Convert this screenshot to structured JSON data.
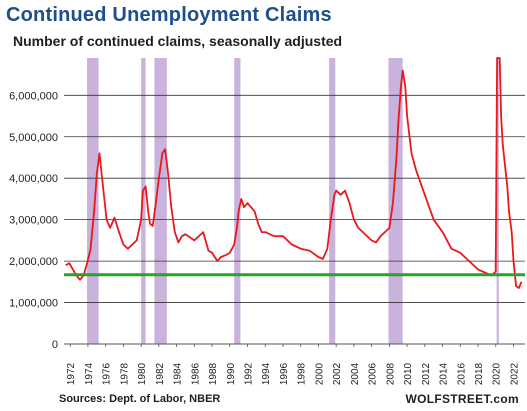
{
  "chart_data": {
    "type": "line",
    "title": "Continued  Unemployment Claims",
    "subtitle": "Number of continued claims, seasonally adjusted",
    "source": "Sources: Dept. of Labor, NBER",
    "brand": "WOLFSTREET.com",
    "ylim": [
      0,
      6900000
    ],
    "xlim": [
      1971.3,
      2023.3
    ],
    "y_ticks": [
      0,
      1000000,
      2000000,
      3000000,
      4000000,
      5000000,
      6000000
    ],
    "y_tick_labels": [
      "0",
      "1,000,000",
      "2,000,000",
      "3,000,000",
      "4,000,000",
      "5,000,000",
      "6,000,000"
    ],
    "x_ticks": [
      1972,
      1974,
      1976,
      1978,
      1980,
      1982,
      1984,
      1986,
      1988,
      1990,
      1992,
      1994,
      1996,
      1998,
      2000,
      2002,
      2004,
      2006,
      2008,
      2010,
      2012,
      2014,
      2016,
      2018,
      2020,
      2022
    ],
    "x_tick_labels": [
      "1972",
      "1974",
      "1976",
      "1978",
      "1980",
      "1982",
      "1984",
      "1986",
      "1988",
      "1990",
      "1992",
      "1994",
      "1996",
      "1998",
      "2000",
      "2002",
      "2004",
      "2006",
      "2008",
      "2010",
      "2012",
      "2014",
      "2016",
      "2018",
      "2020",
      "2022"
    ],
    "grid": true,
    "reference_line": {
      "value": 1670000,
      "color": "#2ca02c"
    },
    "recessions": [
      {
        "start": 1973.9,
        "end": 1975.2
      },
      {
        "start": 1980.0,
        "end": 1980.5
      },
      {
        "start": 1981.5,
        "end": 1982.9
      },
      {
        "start": 1990.5,
        "end": 1991.2
      },
      {
        "start": 2001.2,
        "end": 2001.9
      },
      {
        "start": 2007.9,
        "end": 2009.5
      },
      {
        "start": 2020.1,
        "end": 2020.35
      }
    ],
    "recession_color": "#c9b3dd",
    "series_color": "#e8191b",
    "series": [
      {
        "x": [
          1971.5,
          1971.9,
          1972.3,
          1972.7,
          1973.1,
          1973.5,
          1973.9,
          1974.3,
          1974.7,
          1975.0,
          1975.3,
          1975.5,
          1975.8,
          1976.1,
          1976.5,
          1977.0,
          1977.5,
          1978.0,
          1978.5,
          1979.0,
          1979.5,
          1980.0,
          1980.2,
          1980.5,
          1980.8,
          1981.0,
          1981.3,
          1981.6,
          1982.0,
          1982.4,
          1982.7,
          1983.0,
          1983.4,
          1983.8,
          1984.2,
          1984.6,
          1985.0,
          1986.0,
          1987.0,
          1987.6,
          1988.0,
          1988.6,
          1989.0,
          1989.6,
          1990.0,
          1990.5,
          1990.8,
          1991.0,
          1991.3,
          1991.6,
          1992.0,
          1992.4,
          1992.8,
          1993.2,
          1993.6,
          1994.0,
          1995.0,
          1996.0,
          1997.0,
          1998.0,
          1999.0,
          2000.0,
          2000.5,
          2001.0,
          2001.4,
          2001.8,
          2002.0,
          2002.5,
          2003.0,
          2003.5,
          2004.0,
          2004.5,
          2005.0,
          2006.0,
          2006.5,
          2007.0,
          2007.5,
          2008.0,
          2008.4,
          2008.8,
          2009.0,
          2009.3,
          2009.5,
          2009.8,
          2010.0,
          2010.5,
          2011.0,
          2012.0,
          2013.0,
          2014.0,
          2015.0,
          2016.0,
          2017.0,
          2018.0,
          2019.0,
          2019.5,
          2020.0,
          2020.15,
          2020.25,
          2020.35,
          2020.45,
          2020.6,
          2020.8,
          2021.0,
          2021.3,
          2021.5,
          2021.8,
          2022.0,
          2022.3,
          2022.6,
          2022.9
        ],
        "values": [
          1900000,
          1950000,
          1800000,
          1650000,
          1550000,
          1650000,
          1950000,
          2300000,
          3200000,
          4100000,
          4600000,
          4200000,
          3600000,
          3000000,
          2800000,
          3050000,
          2700000,
          2400000,
          2300000,
          2400000,
          2500000,
          3000000,
          3700000,
          3800000,
          3200000,
          2900000,
          2850000,
          3300000,
          4000000,
          4600000,
          4700000,
          4200000,
          3300000,
          2700000,
          2450000,
          2600000,
          2650000,
          2500000,
          2700000,
          2250000,
          2200000,
          2000000,
          2100000,
          2150000,
          2200000,
          2400000,
          2800000,
          3200000,
          3500000,
          3300000,
          3400000,
          3300000,
          3200000,
          2900000,
          2700000,
          2700000,
          2600000,
          2600000,
          2400000,
          2300000,
          2250000,
          2100000,
          2050000,
          2300000,
          3000000,
          3600000,
          3700000,
          3600000,
          3700000,
          3400000,
          3000000,
          2800000,
          2700000,
          2500000,
          2450000,
          2600000,
          2700000,
          2800000,
          3400000,
          4500000,
          5300000,
          6200000,
          6600000,
          6200000,
          5500000,
          4600000,
          4200000,
          3600000,
          3000000,
          2700000,
          2300000,
          2200000,
          2000000,
          1800000,
          1700000,
          1650000,
          1750000,
          6900000,
          6900000,
          6900000,
          6900000,
          5500000,
          4800000,
          4400000,
          3800000,
          3200000,
          2700000,
          2000000,
          1400000,
          1350000,
          1500000
        ]
      }
    ]
  }
}
